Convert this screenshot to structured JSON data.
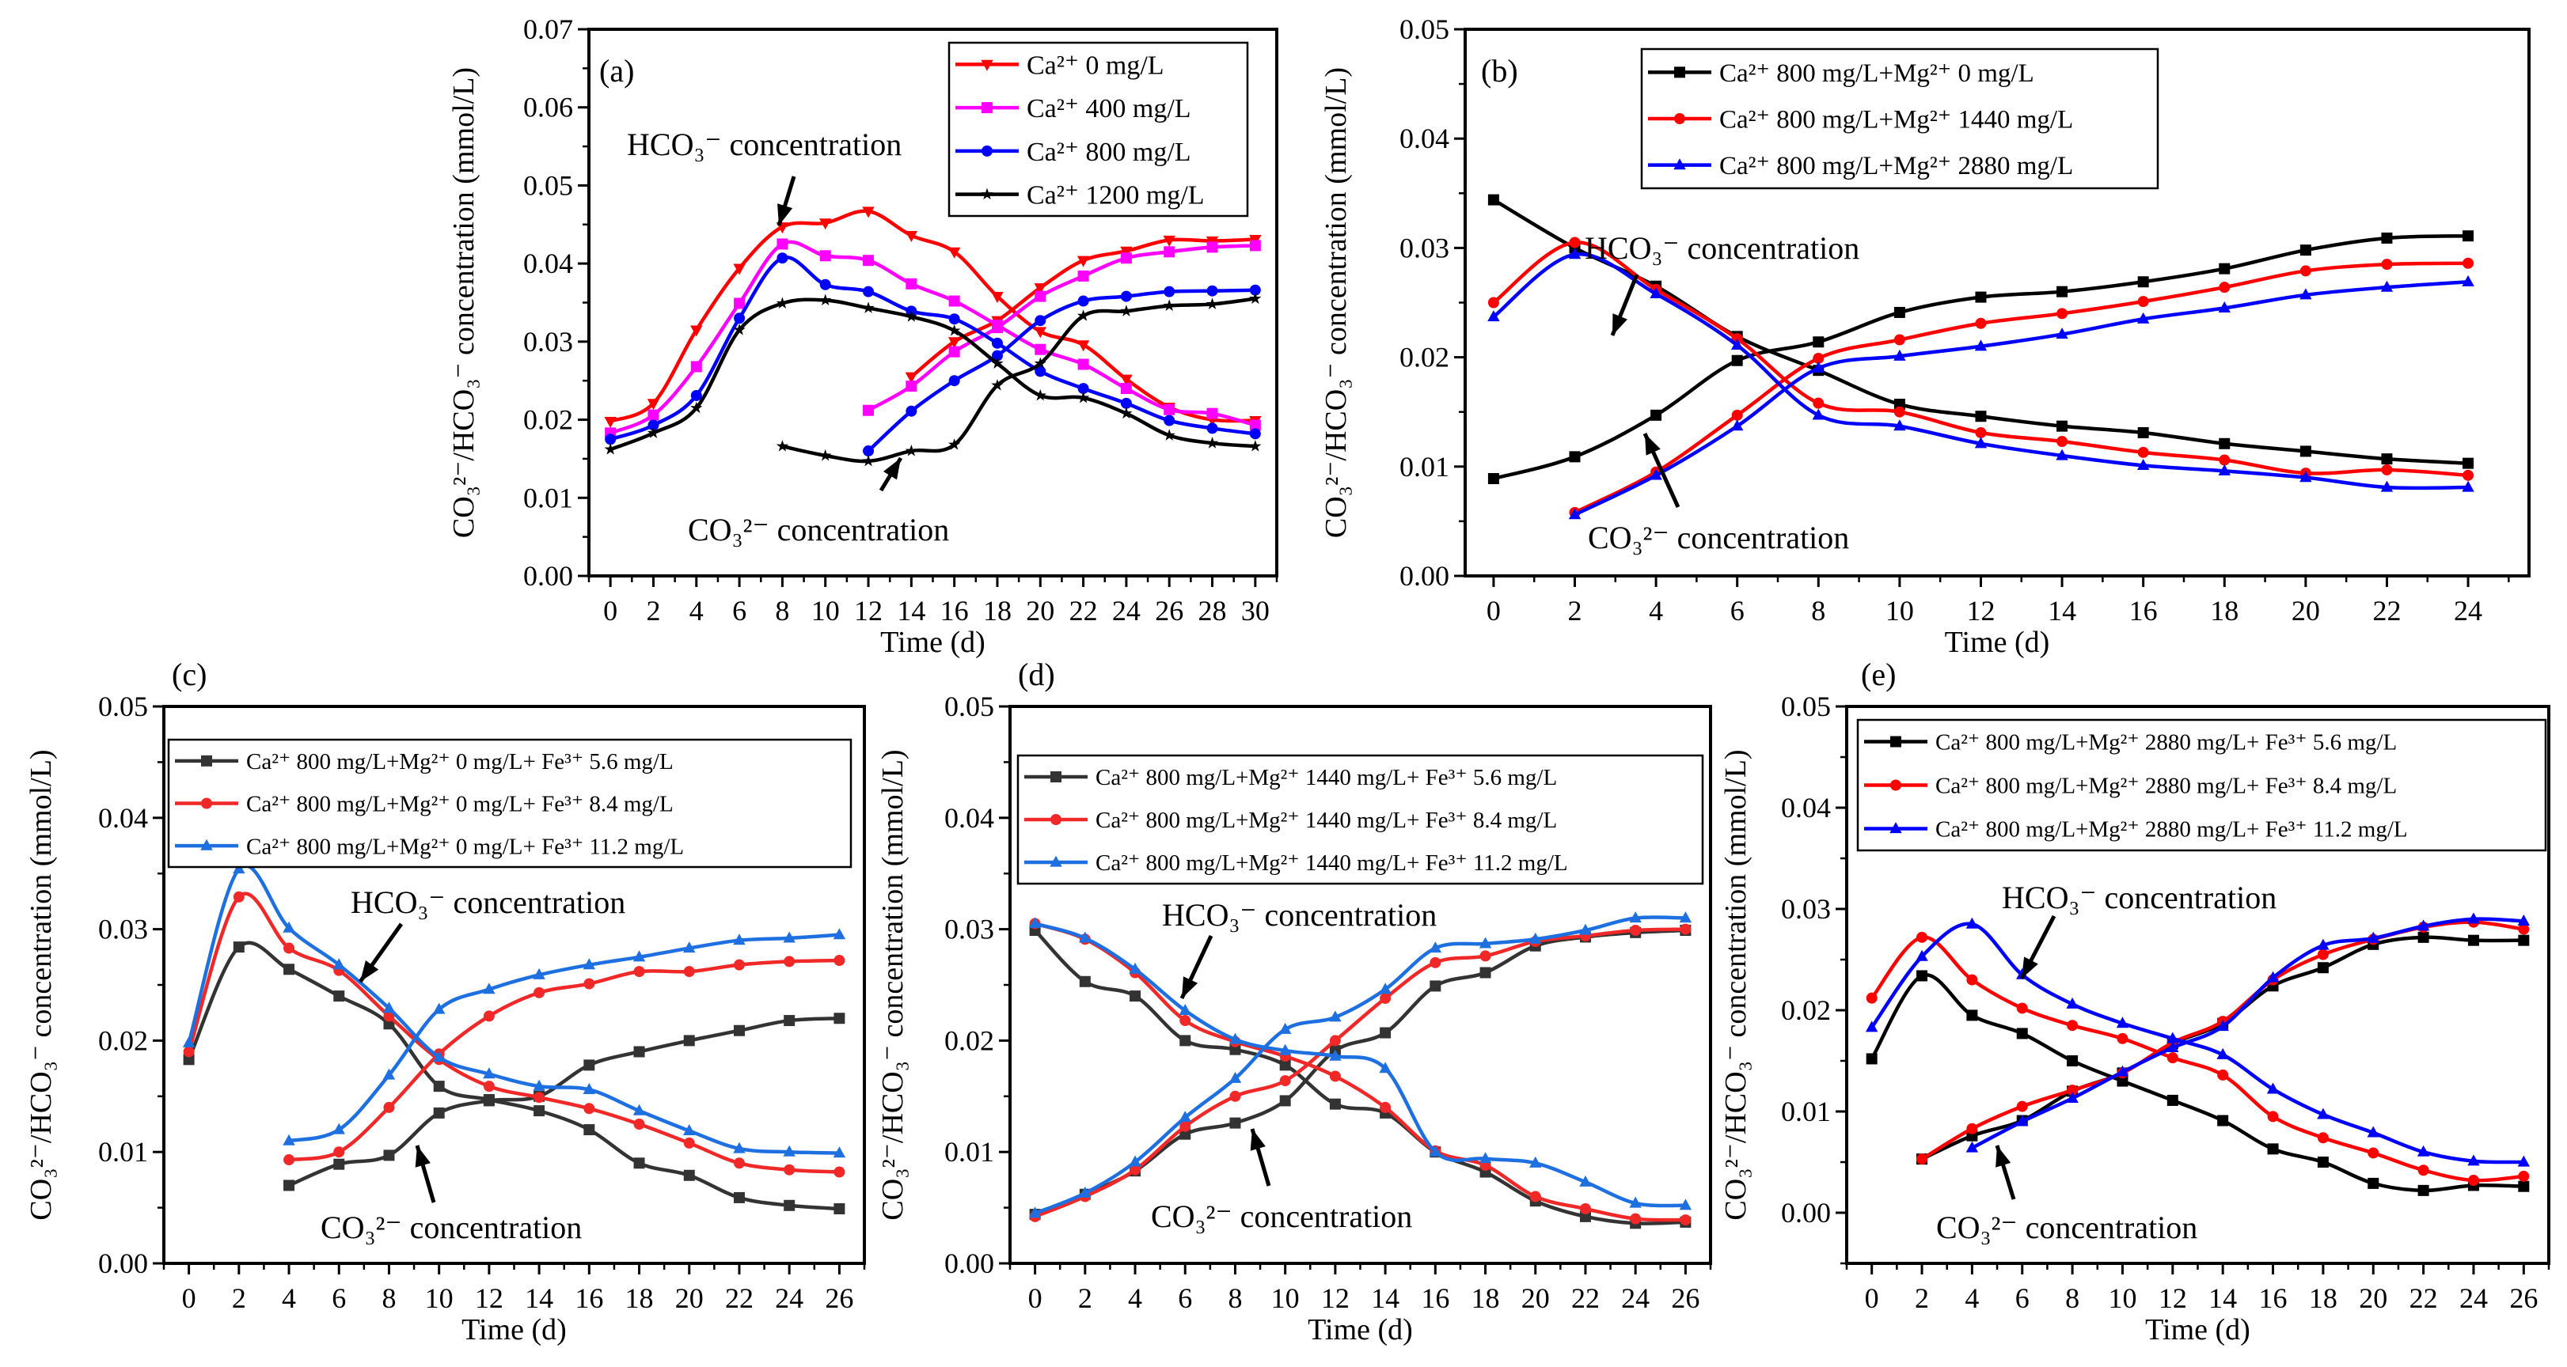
{
  "chart_data": [
    {
      "id": "a",
      "type": "line",
      "panel_label": "(a)",
      "xlabel": "Time (d)",
      "ylabel": "CO₃²⁻/HCO₃⁻ concentration (mmol/L)",
      "xlim": [
        -1,
        31
      ],
      "ylim": [
        0,
        0.07
      ],
      "xtick_labels": [
        "0",
        "2",
        "4",
        "6",
        "8",
        "10",
        "12",
        "14",
        "16",
        "18",
        "20",
        "22",
        "24",
        "26",
        "28",
        "30"
      ],
      "ytick_labels": [
        "0.00",
        "0.01",
        "0.02",
        "0.03",
        "0.04",
        "0.05",
        "0.06",
        "0.07"
      ],
      "annotations": {
        "hco3": "HCO₃⁻ concentration",
        "co3": "CO₃²⁻ concentration"
      },
      "legend_position": "top-right",
      "series": [
        {
          "name": "Ca²⁺ 0 mg/L",
          "color": "#ff0000",
          "marker": "triangle-down",
          "hco3": {
            "x_start": 0,
            "values": [
              0.0198,
              0.0221,
              0.0315,
              0.0394,
              0.0447,
              0.0452,
              0.0467,
              0.0436,
              0.0415,
              0.0358,
              0.0313,
              0.0296,
              0.0252,
              0.0216,
              0.02,
              0.0199
            ]
          },
          "co3": {
            "x_start": 14,
            "values": [
              0.0255,
              0.03,
              0.0327,
              0.0369,
              0.0404,
              0.0416,
              0.043,
              0.0429,
              0.0431
            ]
          }
        },
        {
          "name": "Ca²⁺ 400 mg/L",
          "color": "#ff00ff",
          "marker": "square",
          "hco3": {
            "x_start": 0,
            "values": [
              0.0183,
              0.0206,
              0.0268,
              0.0349,
              0.0425,
              0.041,
              0.0404,
              0.0374,
              0.0352,
              0.0321,
              0.029,
              0.0271,
              0.024,
              0.0213,
              0.0208,
              0.0193
            ]
          },
          "co3": {
            "x_start": 12,
            "values": [
              0.0212,
              0.0243,
              0.0287,
              0.0318,
              0.0358,
              0.0384,
              0.0407,
              0.0415,
              0.0421,
              0.0423
            ]
          }
        },
        {
          "name": "Ca²⁺ 800 mg/L",
          "color": "#0000ff",
          "marker": "circle",
          "hco3": {
            "x_start": 0,
            "values": [
              0.0175,
              0.0193,
              0.0231,
              0.033,
              0.0407,
              0.0373,
              0.0364,
              0.0339,
              0.0329,
              0.0298,
              0.0262,
              0.024,
              0.0221,
              0.0199,
              0.0189,
              0.0182
            ]
          },
          "co3": {
            "x_start": 12,
            "values": [
              0.016,
              0.0211,
              0.025,
              0.0282,
              0.0327,
              0.0352,
              0.0358,
              0.0364,
              0.0365,
              0.0366
            ]
          }
        },
        {
          "name": "Ca²⁺ 1200 mg/L",
          "color": "#000000",
          "marker": "star",
          "hco3": {
            "x_start": 0,
            "values": [
              0.0162,
              0.0183,
              0.0215,
              0.0315,
              0.0349,
              0.0353,
              0.0343,
              0.0332,
              0.0314,
              0.0272,
              0.0231,
              0.0228,
              0.0208,
              0.018,
              0.017,
              0.0166
            ]
          },
          "co3": {
            "x_start": 8,
            "values": [
              0.0166,
              0.0154,
              0.0147,
              0.016,
              0.0168,
              0.0244,
              0.0272,
              0.0333,
              0.0339,
              0.0346,
              0.0348,
              0.0355
            ]
          }
        }
      ]
    },
    {
      "id": "b",
      "type": "line",
      "panel_label": "(b)",
      "xlabel": "Time (d)",
      "ylabel": "CO₃²⁻/HCO₃⁻ concentration (mmol/L)",
      "xlim": [
        -0.7,
        25.5
      ],
      "ylim": [
        0,
        0.05
      ],
      "xtick_labels": [
        "0",
        "2",
        "4",
        "6",
        "8",
        "10",
        "12",
        "14",
        "16",
        "18",
        "20",
        "22",
        "24"
      ],
      "ytick_labels": [
        "0.00",
        "0.01",
        "0.02",
        "0.03",
        "0.04",
        "0.05"
      ],
      "annotations": {
        "hco3": "HCO₃⁻ concentration",
        "co3": "CO₃²⁻ concentration"
      },
      "legend_position": "top-right",
      "series": [
        {
          "name": "Ca²⁺ 800 mg/L+Mg²⁺ 0 mg/L",
          "color": "#000000",
          "marker": "square",
          "hco3": {
            "x_start": 0,
            "values": [
              0.0344,
              0.03,
              0.0265,
              0.0219,
              0.0188,
              0.0157,
              0.0146,
              0.0137,
              0.0131,
              0.0121,
              0.0114,
              0.0107,
              0.0103
            ]
          },
          "co3": {
            "x_start": 0,
            "values": [
              0.0089,
              0.0109,
              0.0147,
              0.0197,
              0.0214,
              0.0241,
              0.0255,
              0.026,
              0.0269,
              0.0281,
              0.0298,
              0.0309,
              0.0311
            ]
          }
        },
        {
          "name": "Ca²⁺ 800 mg/L+Mg²⁺ 1440 mg/L",
          "color": "#ff0000",
          "marker": "circle",
          "hco3": {
            "x_start": 0,
            "values": [
              0.025,
              0.0305,
              0.0262,
              0.0217,
              0.0158,
              0.015,
              0.0131,
              0.0123,
              0.0113,
              0.0106,
              0.0094,
              0.0097,
              0.0092
            ]
          },
          "co3": {
            "x_start": 2,
            "values": [
              0.0058,
              0.0095,
              0.0147,
              0.0199,
              0.0216,
              0.0231,
              0.024,
              0.0251,
              0.0264,
              0.0279,
              0.0285,
              0.0286
            ]
          }
        },
        {
          "name": "Ca²⁺ 800 mg/L+Mg²⁺ 2880 mg/L",
          "color": "#0000ff",
          "marker": "triangle-up",
          "hco3": {
            "x_start": 0,
            "values": [
              0.0237,
              0.0294,
              0.0258,
              0.0211,
              0.0147,
              0.0137,
              0.0121,
              0.011,
              0.0101,
              0.0096,
              0.009,
              0.0081,
              0.0081
            ]
          },
          "co3": {
            "x_start": 2,
            "values": [
              0.0056,
              0.0092,
              0.0137,
              0.019,
              0.0201,
              0.021,
              0.0221,
              0.0235,
              0.0245,
              0.0257,
              0.0264,
              0.0269
            ]
          }
        }
      ]
    },
    {
      "id": "c",
      "type": "line",
      "panel_label": "(c)",
      "xlabel": "Time (d)",
      "ylabel": "CO₃²⁻/HCO₃⁻ concentration (mmol/L)",
      "xlim": [
        -1,
        27
      ],
      "ylim": [
        0,
        0.05
      ],
      "xtick_labels": [
        "0",
        "2",
        "4",
        "6",
        "8",
        "10",
        "12",
        "14",
        "16",
        "18",
        "20",
        "22",
        "24",
        "26"
      ],
      "ytick_labels": [
        "0.00",
        "0.01",
        "0.02",
        "0.03",
        "0.04",
        "0.05"
      ],
      "annotations": {
        "hco3": "HCO₃⁻ concentration",
        "co3": "CO₃²⁻ concentration"
      },
      "legend_position": "top",
      "series": [
        {
          "name": "Ca²⁺ 800 mg/L+Mg²⁺ 0 mg/L+ Fe³⁺ 5.6 mg/L",
          "color": "#333333",
          "marker": "square",
          "hco3": {
            "x_start": 0,
            "values": [
              0.0183,
              0.0284,
              0.0264,
              0.024,
              0.0215,
              0.0159,
              0.0147,
              0.0137,
              0.012,
              0.009,
              0.0079,
              0.0059,
              0.0052,
              0.0049
            ]
          },
          "co3": {
            "x_start": 4,
            "values": [
              0.007,
              0.0089,
              0.0097,
              0.0135,
              0.0146,
              0.015,
              0.0178,
              0.019,
              0.02,
              0.0209,
              0.0218,
              0.022
            ]
          }
        },
        {
          "name": "Ca²⁺ 800 mg/L+Mg²⁺ 0 mg/L+ Fe³⁺ 8.4 mg/L",
          "color": "#f02828",
          "marker": "circle",
          "hco3": {
            "x_start": 0,
            "values": [
              0.019,
              0.0329,
              0.0283,
              0.0263,
              0.0222,
              0.0183,
              0.0159,
              0.0149,
              0.0139,
              0.0125,
              0.0108,
              0.009,
              0.0084,
              0.0082
            ]
          },
          "co3": {
            "x_start": 4,
            "values": [
              0.0093,
              0.01,
              0.014,
              0.0188,
              0.0222,
              0.0243,
              0.0251,
              0.0262,
              0.0262,
              0.0268,
              0.0271,
              0.0272
            ]
          }
        },
        {
          "name": "Ca²⁺ 800 mg/L+Mg²⁺ 0 mg/L+ Fe³⁺ 11.2 mg/L",
          "color": "#1e6fe0",
          "marker": "triangle-up",
          "hco3": {
            "x_start": 0,
            "values": [
              0.0198,
              0.0354,
              0.0301,
              0.0268,
              0.0229,
              0.0185,
              0.017,
              0.0159,
              0.0156,
              0.0137,
              0.0119,
              0.0103,
              0.01,
              0.0099
            ]
          },
          "co3": {
            "x_start": 4,
            "values": [
              0.011,
              0.012,
              0.0169,
              0.0228,
              0.0246,
              0.0259,
              0.0268,
              0.0275,
              0.0283,
              0.029,
              0.0292,
              0.0295
            ]
          }
        }
      ]
    },
    {
      "id": "d",
      "type": "line",
      "panel_label": "(d)",
      "xlabel": "Time (d)",
      "ylabel": "CO₃²⁻/HCO₃⁻ concentration (mmol/L)",
      "xlim": [
        -1,
        27
      ],
      "ylim": [
        0,
        0.05
      ],
      "xtick_labels": [
        "0",
        "2",
        "4",
        "6",
        "8",
        "10",
        "12",
        "14",
        "16",
        "18",
        "20",
        "22",
        "24",
        "26"
      ],
      "ytick_labels": [
        "0.00",
        "0.01",
        "0.02",
        "0.03",
        "0.04",
        "0.05"
      ],
      "annotations": {
        "hco3": "HCO₃⁻ concentration",
        "co3": "CO₃²⁻ concentration"
      },
      "legend_position": "top",
      "series": [
        {
          "name": "Ca²⁺ 800 mg/L+Mg²⁺ 1440 mg/L+ Fe³⁺ 5.6 mg/L",
          "color": "#333333",
          "marker": "square",
          "hco3": {
            "x_start": 0,
            "values": [
              0.0299,
              0.0253,
              0.024,
              0.02,
              0.0192,
              0.0178,
              0.0143,
              0.0135,
              0.01,
              0.0082,
              0.0056,
              0.0042,
              0.0036,
              0.0037
            ]
          },
          "co3": {
            "x_start": 0,
            "values": [
              0.0044,
              0.0062,
              0.0083,
              0.0116,
              0.0126,
              0.0146,
              0.0191,
              0.0207,
              0.0249,
              0.0261,
              0.0285,
              0.0293,
              0.0297,
              0.0299
            ]
          }
        },
        {
          "name": "Ca²⁺ 800 mg/L+Mg²⁺ 1440 mg/L+ Fe³⁺ 8.4 mg/L",
          "color": "#f02828",
          "marker": "circle",
          "hco3": {
            "x_start": 0,
            "values": [
              0.0305,
              0.0291,
              0.0261,
              0.0218,
              0.0199,
              0.0186,
              0.0168,
              0.014,
              0.0101,
              0.0088,
              0.006,
              0.0049,
              0.004,
              0.0039
            ]
          },
          "co3": {
            "x_start": 0,
            "values": [
              0.0042,
              0.006,
              0.0084,
              0.0123,
              0.015,
              0.0164,
              0.02,
              0.0238,
              0.027,
              0.0276,
              0.0289,
              0.0294,
              0.0299,
              0.03
            ]
          }
        },
        {
          "name": "Ca²⁺ 800 mg/L+Mg²⁺ 1440 mg/L+ Fe³⁺ 11.2 mg/L",
          "color": "#1e6fe0",
          "marker": "triangle-up",
          "hco3": {
            "x_start": 0,
            "values": [
              0.0305,
              0.0292,
              0.0264,
              0.0227,
              0.0201,
              0.0191,
              0.0186,
              0.0175,
              0.01,
              0.0094,
              0.009,
              0.0073,
              0.0054,
              0.0052
            ]
          },
          "co3": {
            "x_start": 0,
            "values": [
              0.0045,
              0.0063,
              0.0091,
              0.0131,
              0.0166,
              0.021,
              0.0221,
              0.0246,
              0.0283,
              0.0287,
              0.0291,
              0.0299,
              0.031,
              0.031
            ]
          }
        }
      ]
    },
    {
      "id": "e",
      "type": "line",
      "panel_label": "(e)",
      "xlabel": "Time (d)",
      "ylabel": "CO₃²⁻/HCO₃⁻ concentration (mmol/L)",
      "xlim": [
        -1,
        27
      ],
      "ylim": [
        -0.005,
        0.05
      ],
      "xtick_labels": [
        "0",
        "2",
        "4",
        "6",
        "8",
        "10",
        "12",
        "14",
        "16",
        "18",
        "20",
        "22",
        "24",
        "26"
      ],
      "ytick_labels": [
        "0.00",
        "0.01",
        "0.02",
        "0.03",
        "0.04",
        "0.05"
      ],
      "annotations": {
        "hco3": "HCO₃⁻ concentration",
        "co3": "CO₃²⁻ concentration"
      },
      "legend_position": "top",
      "series": [
        {
          "name": "Ca²⁺ 800 mg/L+Mg²⁺ 2880 mg/L+ Fe³⁺ 5.6 mg/L",
          "color": "#000000",
          "marker": "square",
          "hco3": {
            "x_start": 0,
            "values": [
              0.0152,
              0.0234,
              0.0195,
              0.0177,
              0.015,
              0.013,
              0.0111,
              0.0091,
              0.0063,
              0.005,
              0.0029,
              0.0022,
              0.0027,
              0.0026
            ]
          },
          "co3": {
            "x_start": 2,
            "values": [
              0.0053,
              0.0076,
              0.0091,
              0.012,
              0.0138,
              0.0167,
              0.0187,
              0.0224,
              0.0242,
              0.0265,
              0.0272,
              0.0269,
              0.0269
            ]
          }
        },
        {
          "name": "Ca²⁺ 800 mg/L+Mg²⁺ 2880 mg/L+ Fe³⁺ 8.4 mg/L",
          "color": "#ff0000",
          "marker": "circle",
          "hco3": {
            "x_start": 0,
            "values": [
              0.0212,
              0.0272,
              0.023,
              0.0202,
              0.0185,
              0.0172,
              0.0153,
              0.0136,
              0.0095,
              0.0074,
              0.0059,
              0.0042,
              0.0032,
              0.0036
            ]
          },
          "co3": {
            "x_start": 2,
            "values": [
              0.0053,
              0.0083,
              0.0105,
              0.0121,
              0.0138,
              0.0168,
              0.0189,
              0.023,
              0.0255,
              0.027,
              0.0282,
              0.0287,
              0.028
            ]
          }
        },
        {
          "name": "Ca²⁺ 800 mg/L+Mg²⁺ 2880 mg/L+ Fe³⁺ 11.2 mg/L",
          "color": "#0000ff",
          "marker": "triangle-up",
          "hco3": {
            "x_start": 0,
            "values": [
              0.0183,
              0.0253,
              0.0285,
              0.0235,
              0.0206,
              0.0187,
              0.0172,
              0.0156,
              0.0122,
              0.0097,
              0.0079,
              0.006,
              0.0051,
              0.005
            ]
          },
          "co3": {
            "x_start": 4,
            "values": [
              0.0064,
              0.009,
              0.0113,
              0.0139,
              0.0163,
              0.0184,
              0.0232,
              0.0264,
              0.0271,
              0.0283,
              0.029,
              0.0288
            ]
          }
        }
      ]
    }
  ]
}
